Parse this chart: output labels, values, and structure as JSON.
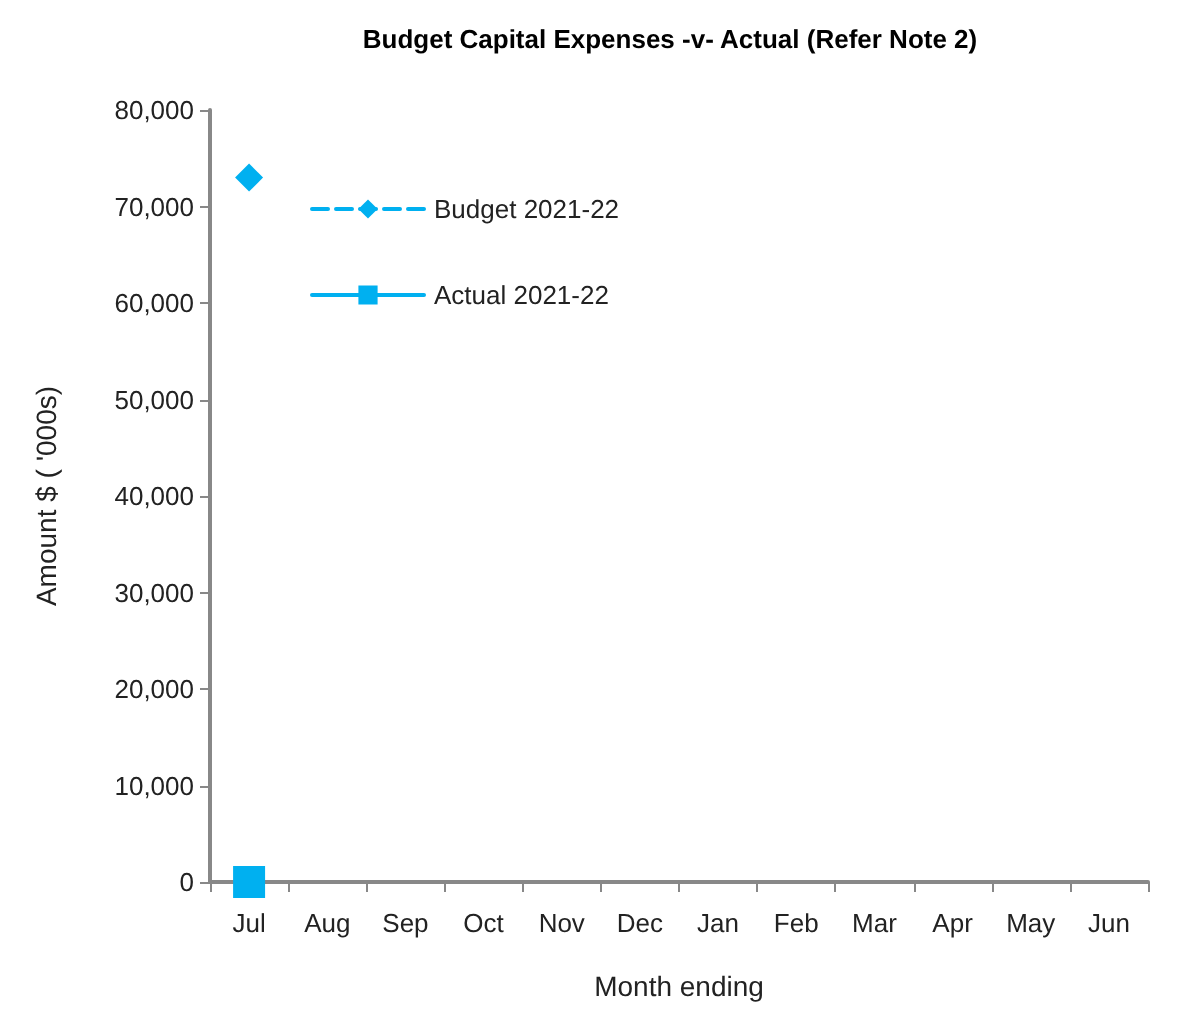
{
  "chart_data": {
    "type": "line",
    "title": "Budget Capital Expenses -v- Actual (Refer Note 2)",
    "xlabel": "Month ending",
    "ylabel": "Amount $ ( '000s)",
    "categories": [
      "Jul",
      "Aug",
      "Sep",
      "Oct",
      "Nov",
      "Dec",
      "Jan",
      "Feb",
      "Mar",
      "Apr",
      "May",
      "Jun"
    ],
    "series": [
      {
        "name": "Budget 2021-22",
        "color": "#00b0f0",
        "marker": "diamond",
        "line_style": "dashed",
        "values": [
          73000,
          null,
          null,
          null,
          null,
          null,
          null,
          null,
          null,
          null,
          null,
          null
        ]
      },
      {
        "name": "Actual 2021-22",
        "color": "#00b0f0",
        "marker": "square",
        "line_style": "solid",
        "values": [
          0,
          null,
          null,
          null,
          null,
          null,
          null,
          null,
          null,
          null,
          null,
          null
        ]
      }
    ],
    "ylim": [
      0,
      80000
    ],
    "yticks": [
      0,
      {
        "value": 10000,
        "label": "10,000"
      },
      {
        "value": 20000,
        "label": "20,000"
      },
      {
        "value": 30000,
        "label": "30,000"
      },
      {
        "value": 40000,
        "label": "40,000"
      },
      {
        "value": 50000,
        "label": "50,000"
      },
      {
        "value": 60000,
        "label": "60,000"
      },
      {
        "value": 70000,
        "label": "70,000"
      },
      {
        "value": 80000,
        "label": "80,000"
      }
    ],
    "grid": false,
    "legend": "top left"
  }
}
